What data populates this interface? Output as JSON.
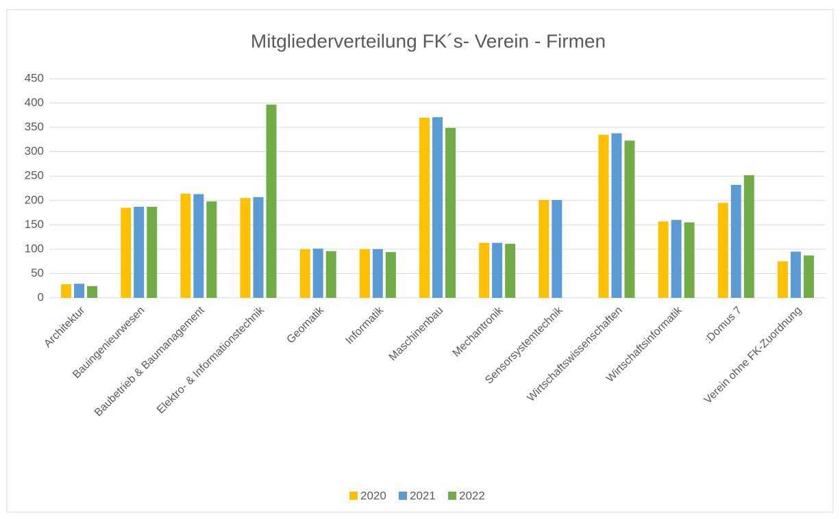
{
  "chart_data": {
    "type": "bar",
    "title": "Mitgliederverteilung FK´s- Verein - Firmen",
    "categories": [
      "Architektur",
      "Bauingenieurwesen",
      "Baubetrieb & Baumanagement",
      "Elektro- & Informationstechnik",
      "Geomatik",
      "Informatik",
      "Maschinenbau",
      "Mechantronik",
      "Sensorsystemtechnik",
      "Wirtschaftswissenschaften",
      "Wirtschaftsinformatik",
      ":Domus 7",
      "Verein ohne FK-Zuordnung"
    ],
    "series": [
      {
        "name": "2020",
        "color": "#FFC000",
        "values": [
          28,
          185,
          214,
          205,
          100,
          100,
          370,
          113,
          201,
          335,
          157,
          195,
          75
        ]
      },
      {
        "name": "2021",
        "color": "#5B9BD5",
        "values": [
          29,
          187,
          213,
          207,
          101,
          100,
          371,
          113,
          201,
          338,
          160,
          232,
          95
        ]
      },
      {
        "name": "2022",
        "color": "#70AD47",
        "values": [
          24,
          187,
          198,
          397,
          96,
          94,
          349,
          111,
          null,
          323,
          155,
          252,
          87
        ]
      }
    ],
    "ylim": [
      0,
      450
    ],
    "yticks": [
      0,
      50,
      100,
      150,
      200,
      250,
      300,
      350,
      400,
      450
    ],
    "grid": true,
    "legend": "bottom"
  }
}
